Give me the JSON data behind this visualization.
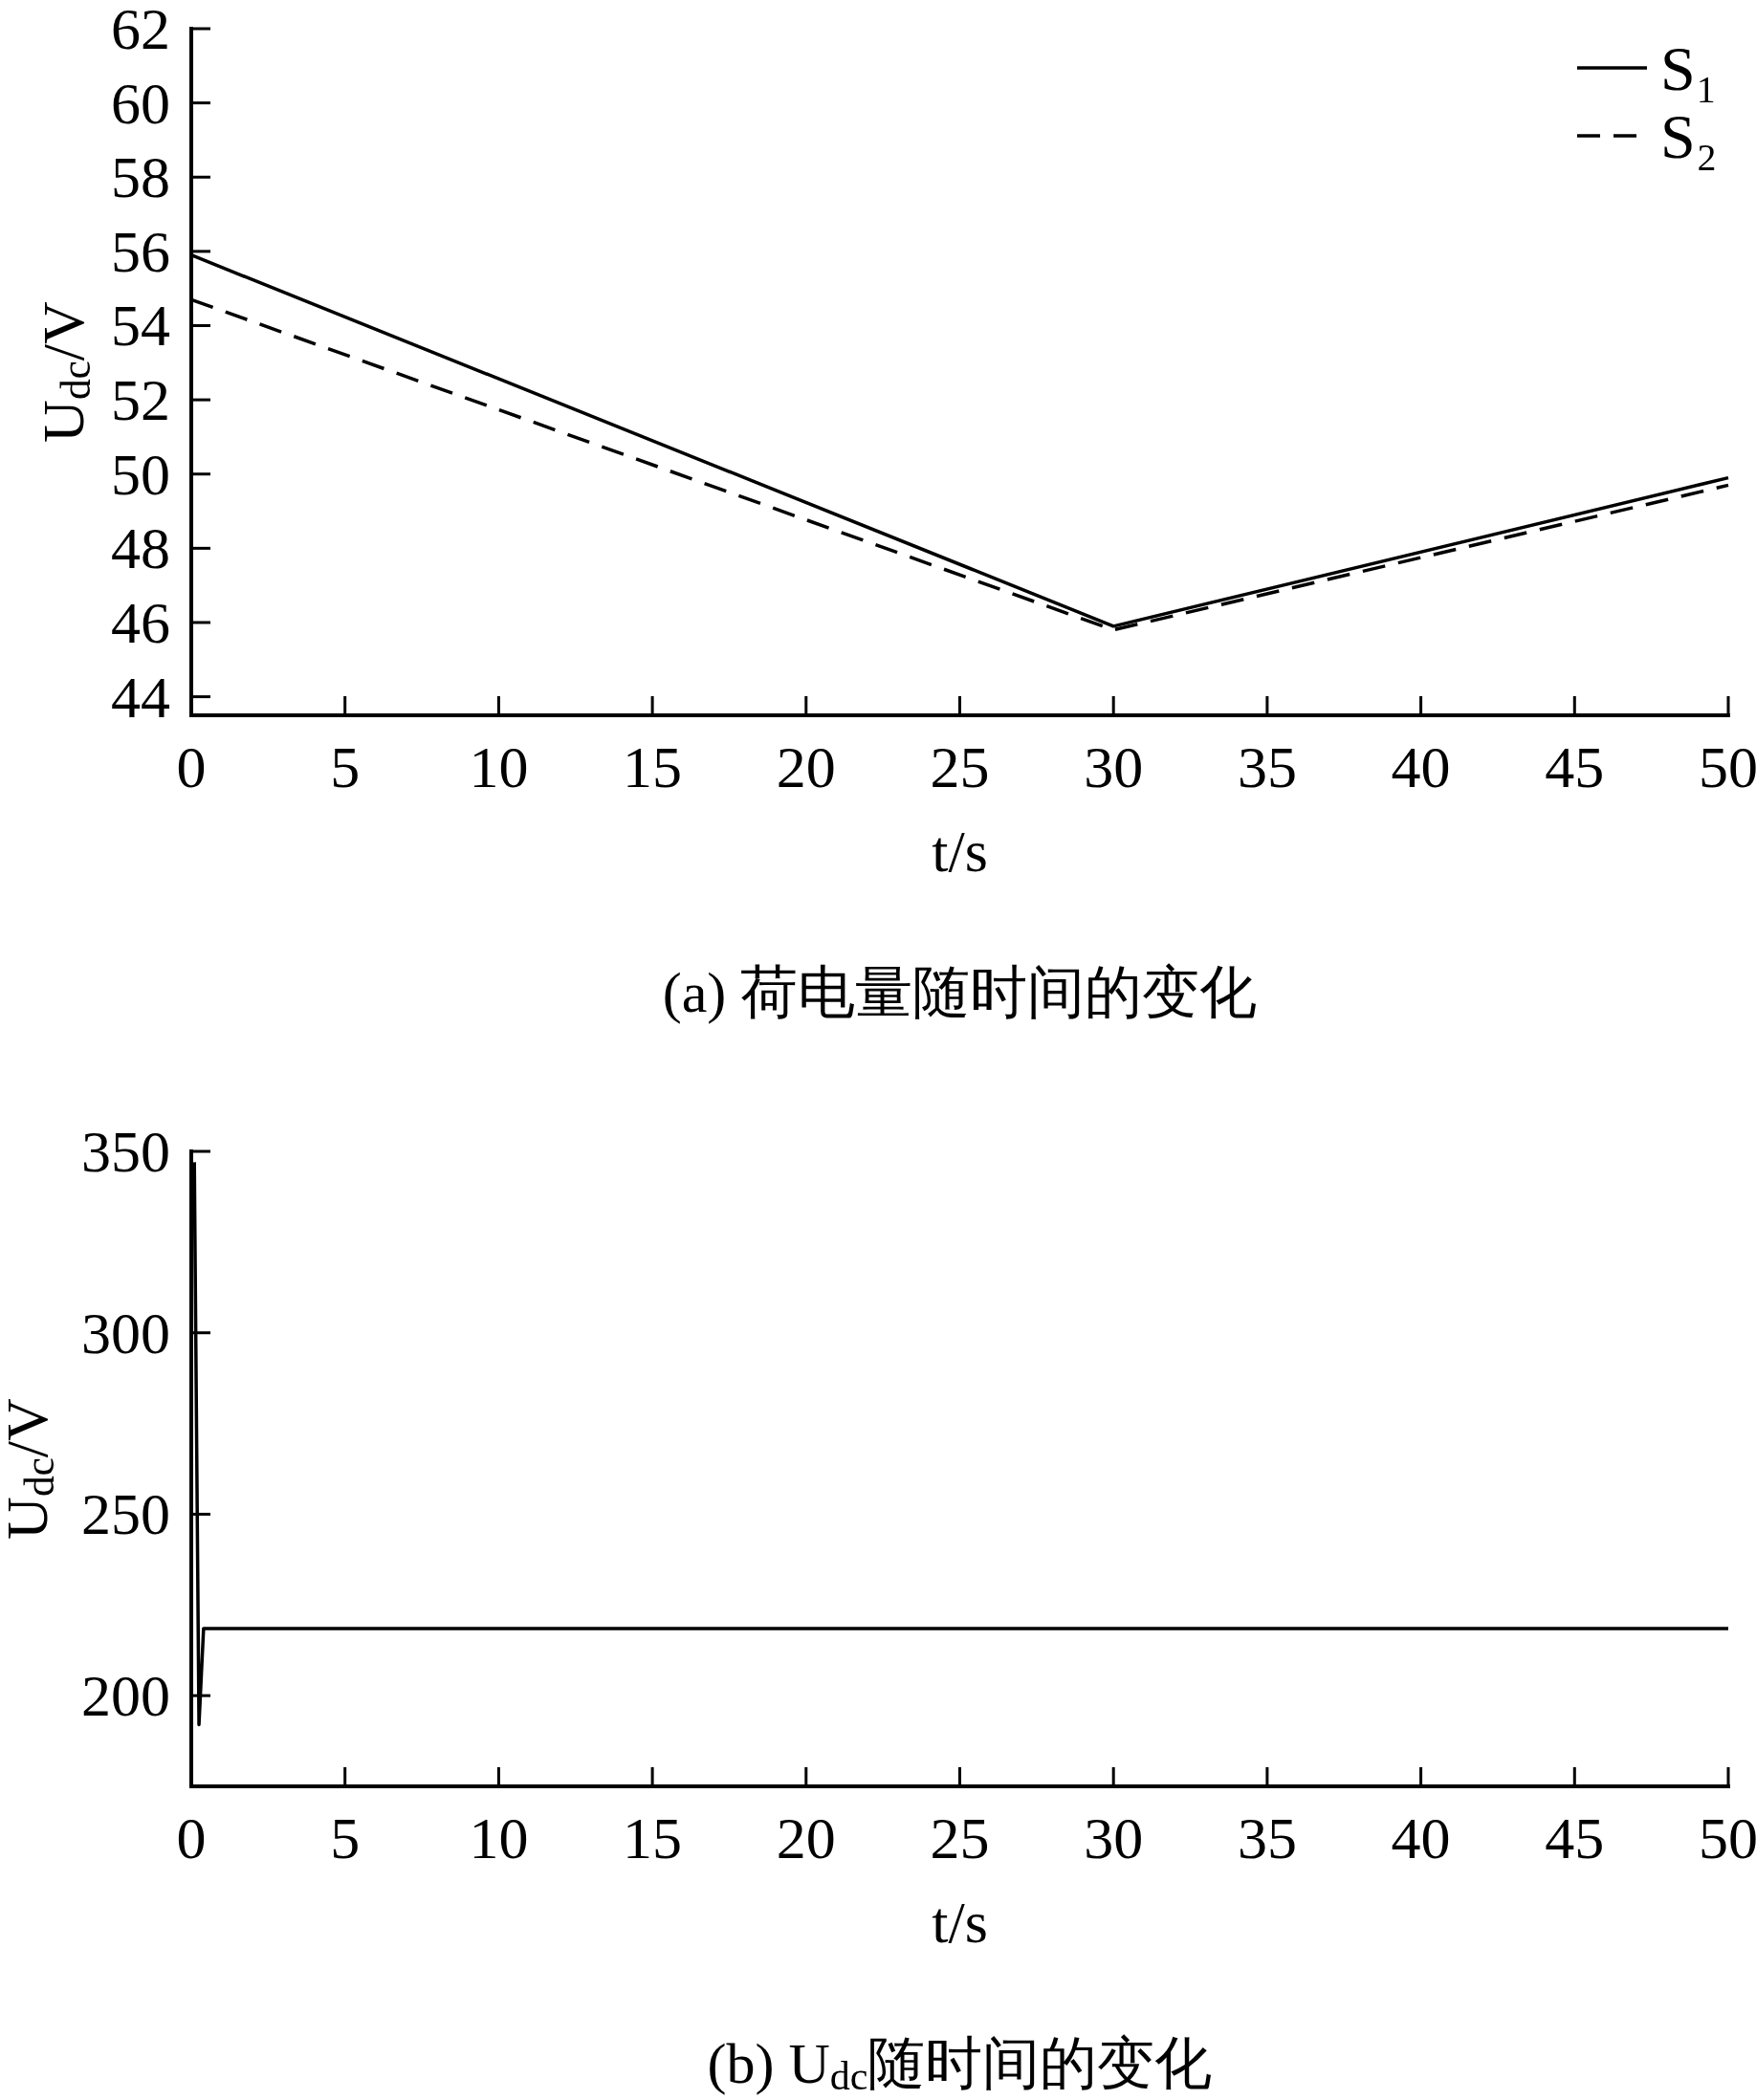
{
  "chart_data": [
    {
      "type": "line",
      "title": "(a) 荷电量随时间的变化",
      "xlabel": "t/s",
      "ylabel": "U$_{dc}$/V",
      "series": [
        {
          "name": "S₁",
          "color": "#000000",
          "x": [
            0,
            30,
            50
          ],
          "values": [
            55.9,
            45.9,
            49.9
          ],
          "line_style": "solid"
        },
        {
          "name": "S₂",
          "color": "#000000",
          "x": [
            0,
            30,
            50
          ],
          "values": [
            54.7,
            45.8,
            49.7
          ],
          "line_style": "dashed"
        }
      ],
      "xlim": [
        0,
        50
      ],
      "xticks": [
        0,
        5,
        10,
        15,
        20,
        25,
        30,
        35,
        40,
        45,
        50
      ],
      "ylim": [
        43.5,
        62
      ],
      "yticks": [
        44,
        46,
        48,
        50,
        52,
        54,
        56,
        58,
        60,
        62
      ],
      "legend": "top right"
    },
    {
      "type": "line",
      "title": "(b) U$_{dc}$随时间的变化",
      "xlabel": "t/s",
      "ylabel": "U$_{dc}$/V",
      "x": [
        0.1,
        0.25,
        0.4,
        50
      ],
      "values": [
        347,
        192,
        218.5,
        218.5
      ],
      "color": "#000000",
      "xlim": [
        0,
        50
      ],
      "xticks": [
        0,
        5,
        10,
        15,
        20,
        25,
        30,
        35,
        40,
        45,
        50
      ],
      "ylim": [
        175,
        350
      ],
      "yticks": [
        200,
        250,
        300,
        350
      ]
    }
  ]
}
